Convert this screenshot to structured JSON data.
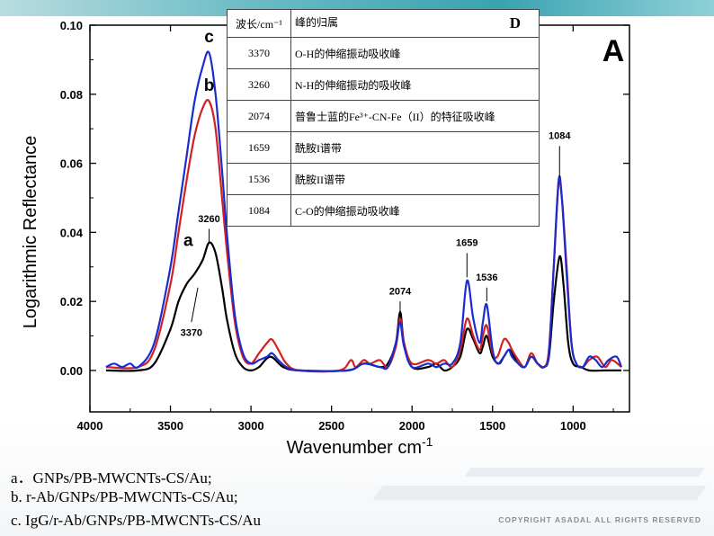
{
  "slide": {
    "legend_lines": [
      "a．GNPs/PB-MWCNTs-CS/Au;",
      "b. r-Ab/GNPs/PB-MWCNTs-CS/Au;",
      "c. IgG/r-Ab/GNPs/PB-MWCNTs-CS/Au"
    ],
    "copyright": "COPYRIGHT  ASADAL  ALL RIGHTS RESERVED"
  },
  "assignment_table": {
    "header": {
      "wavelength": "波长/cm⁻¹",
      "assignment": "峰的归属"
    },
    "panel_label": "D",
    "rows": [
      {
        "wavelength": "3370",
        "assignment": "O-H的伸缩振动吸收峰"
      },
      {
        "wavelength": "3260",
        "assignment": "N-H的伸缩振动的吸收峰"
      },
      {
        "wavelength": "2074",
        "assignment": "普鲁士蓝的Fe³⁺-CN-Fe（II）的特征吸收峰"
      },
      {
        "wavelength": "1659",
        "assignment": "酰胺I谱带"
      },
      {
        "wavelength": "1536",
        "assignment": "酰胺II谱带"
      },
      {
        "wavelength": "1084",
        "assignment": "C-O的伸缩振动吸收峰"
      }
    ]
  },
  "chart_data": {
    "type": "line",
    "panel_label": "A",
    "xlabel": "Wavenumber  cm",
    "xlabel_superscript": "-1",
    "ylabel": "Logarithmic  Reflectance",
    "xlim": [
      4000,
      650
    ],
    "ylim": [
      -0.012,
      0.1
    ],
    "x_reversed": true,
    "xticks": [
      4000,
      3500,
      3000,
      2500,
      2000,
      1500,
      1000
    ],
    "yticks": [
      0.0,
      0.02,
      0.04,
      0.06,
      0.08,
      0.1
    ],
    "ytick_labels": [
      "0.00",
      "0.02",
      "0.04",
      "0.06",
      "0.08",
      "0.10"
    ],
    "grid": false,
    "series": [
      {
        "name": "a",
        "color": "#000000",
        "points": [
          [
            3900,
            0
          ],
          [
            3700,
            0
          ],
          [
            3600,
            0.002
          ],
          [
            3500,
            0.012
          ],
          [
            3450,
            0.02
          ],
          [
            3400,
            0.025
          ],
          [
            3350,
            0.028
          ],
          [
            3300,
            0.032
          ],
          [
            3260,
            0.037
          ],
          [
            3220,
            0.034
          ],
          [
            3180,
            0.024
          ],
          [
            3150,
            0.015
          ],
          [
            3100,
            0.005
          ],
          [
            3050,
            0.001
          ],
          [
            3000,
            0
          ],
          [
            2950,
            0.001
          ],
          [
            2880,
            0.004
          ],
          [
            2800,
            0.001
          ],
          [
            2700,
            0
          ],
          [
            2400,
            0
          ],
          [
            2300,
            0.002
          ],
          [
            2200,
            0.001
          ],
          [
            2150,
            0.002
          ],
          [
            2100,
            0.008
          ],
          [
            2074,
            0.017
          ],
          [
            2050,
            0.008
          ],
          [
            2000,
            0.001
          ],
          [
            1900,
            0.001
          ],
          [
            1850,
            0.002
          ],
          [
            1800,
            0
          ],
          [
            1750,
            0.001
          ],
          [
            1700,
            0.004
          ],
          [
            1659,
            0.012
          ],
          [
            1620,
            0.009
          ],
          [
            1580,
            0.005
          ],
          [
            1560,
            0.007
          ],
          [
            1536,
            0.01
          ],
          [
            1500,
            0.004
          ],
          [
            1460,
            0.002
          ],
          [
            1430,
            0.004
          ],
          [
            1400,
            0.006
          ],
          [
            1380,
            0.005
          ],
          [
            1340,
            0.002
          ],
          [
            1300,
            0.001
          ],
          [
            1260,
            0.004
          ],
          [
            1220,
            0.002
          ],
          [
            1180,
            0.001
          ],
          [
            1150,
            0.004
          ],
          [
            1120,
            0.02
          ],
          [
            1084,
            0.033
          ],
          [
            1060,
            0.025
          ],
          [
            1030,
            0.008
          ],
          [
            1000,
            0.002
          ],
          [
            950,
            0.001
          ],
          [
            900,
            0
          ],
          [
            800,
            0
          ],
          [
            700,
            0
          ]
        ]
      },
      {
        "name": "b",
        "color": "#d42020",
        "points": [
          [
            3900,
            0.001
          ],
          [
            3700,
            0.001
          ],
          [
            3600,
            0.006
          ],
          [
            3500,
            0.025
          ],
          [
            3450,
            0.04
          ],
          [
            3400,
            0.055
          ],
          [
            3350,
            0.068
          ],
          [
            3300,
            0.076
          ],
          [
            3260,
            0.078
          ],
          [
            3220,
            0.07
          ],
          [
            3180,
            0.05
          ],
          [
            3150,
            0.035
          ],
          [
            3100,
            0.014
          ],
          [
            3050,
            0.004
          ],
          [
            3000,
            0.002
          ],
          [
            2950,
            0.005
          ],
          [
            2900,
            0.008
          ],
          [
            2870,
            0.009
          ],
          [
            2830,
            0.006
          ],
          [
            2780,
            0.002
          ],
          [
            2700,
            0
          ],
          [
            2450,
            0
          ],
          [
            2380,
            0.003
          ],
          [
            2350,
            0.001
          ],
          [
            2300,
            0.003
          ],
          [
            2260,
            0.002
          ],
          [
            2200,
            0.003
          ],
          [
            2150,
            0.001
          ],
          [
            2100,
            0.007
          ],
          [
            2074,
            0.015
          ],
          [
            2050,
            0.008
          ],
          [
            2000,
            0.002
          ],
          [
            1900,
            0.003
          ],
          [
            1850,
            0.002
          ],
          [
            1800,
            0.003
          ],
          [
            1750,
            0.001
          ],
          [
            1700,
            0.006
          ],
          [
            1659,
            0.015
          ],
          [
            1620,
            0.01
          ],
          [
            1580,
            0.006
          ],
          [
            1560,
            0.01
          ],
          [
            1536,
            0.013
          ],
          [
            1500,
            0.005
          ],
          [
            1470,
            0.004
          ],
          [
            1430,
            0.009
          ],
          [
            1400,
            0.008
          ],
          [
            1380,
            0.006
          ],
          [
            1340,
            0.003
          ],
          [
            1300,
            0.001
          ],
          [
            1260,
            0.005
          ],
          [
            1220,
            0.002
          ],
          [
            1180,
            0.001
          ],
          [
            1150,
            0.006
          ],
          [
            1120,
            0.03
          ],
          [
            1090,
            0.054
          ],
          [
            1070,
            0.05
          ],
          [
            1040,
            0.03
          ],
          [
            1010,
            0.008
          ],
          [
            980,
            0.002
          ],
          [
            940,
            0.001
          ],
          [
            900,
            0.003
          ],
          [
            850,
            0.004
          ],
          [
            800,
            0.001
          ],
          [
            760,
            0.003
          ],
          [
            700,
            0.001
          ]
        ]
      },
      {
        "name": "c",
        "color": "#1a2ccf",
        "points": [
          [
            3900,
            0.001
          ],
          [
            3850,
            0.002
          ],
          [
            3800,
            0.001
          ],
          [
            3750,
            0.002
          ],
          [
            3700,
            0.001
          ],
          [
            3600,
            0.008
          ],
          [
            3500,
            0.03
          ],
          [
            3450,
            0.046
          ],
          [
            3400,
            0.062
          ],
          [
            3350,
            0.078
          ],
          [
            3300,
            0.088
          ],
          [
            3260,
            0.092
          ],
          [
            3220,
            0.08
          ],
          [
            3180,
            0.058
          ],
          [
            3150,
            0.04
          ],
          [
            3100,
            0.016
          ],
          [
            3050,
            0.005
          ],
          [
            3000,
            0.002
          ],
          [
            2950,
            0.003
          ],
          [
            2900,
            0.004
          ],
          [
            2870,
            0.005
          ],
          [
            2830,
            0.003
          ],
          [
            2780,
            0.001
          ],
          [
            2700,
            0
          ],
          [
            2400,
            0
          ],
          [
            2300,
            0.002
          ],
          [
            2200,
            0.001
          ],
          [
            2150,
            0.001
          ],
          [
            2100,
            0.008
          ],
          [
            2074,
            0.014
          ],
          [
            2050,
            0.007
          ],
          [
            2000,
            0.001
          ],
          [
            1900,
            0.002
          ],
          [
            1850,
            0.001
          ],
          [
            1800,
            0.002
          ],
          [
            1750,
            0.002
          ],
          [
            1700,
            0.008
          ],
          [
            1659,
            0.026
          ],
          [
            1620,
            0.015
          ],
          [
            1580,
            0.008
          ],
          [
            1560,
            0.014
          ],
          [
            1536,
            0.019
          ],
          [
            1500,
            0.006
          ],
          [
            1470,
            0.002
          ],
          [
            1430,
            0.004
          ],
          [
            1400,
            0.006
          ],
          [
            1380,
            0.004
          ],
          [
            1340,
            0.002
          ],
          [
            1300,
            0.001
          ],
          [
            1260,
            0.004
          ],
          [
            1220,
            0.002
          ],
          [
            1180,
            0.001
          ],
          [
            1150,
            0.005
          ],
          [
            1120,
            0.03
          ],
          [
            1090,
            0.055
          ],
          [
            1070,
            0.05
          ],
          [
            1040,
            0.028
          ],
          [
            1010,
            0.008
          ],
          [
            980,
            0.002
          ],
          [
            940,
            0.001
          ],
          [
            900,
            0.004
          ],
          [
            860,
            0.003
          ],
          [
            820,
            0.001
          ],
          [
            780,
            0.003
          ],
          [
            730,
            0.004
          ],
          [
            700,
            0.001
          ]
        ]
      }
    ],
    "annotations": [
      {
        "text": "c",
        "x": 3260,
        "y": 0.095,
        "style": "series-letter"
      },
      {
        "text": "b",
        "x": 3260,
        "y": 0.081,
        "style": "series-letter"
      },
      {
        "text": "a",
        "x": 3390,
        "y": 0.036,
        "style": "series-letter"
      },
      {
        "text": "3260",
        "x": 3260,
        "y": 0.043,
        "style": "peak"
      },
      {
        "text": "3370",
        "x": 3370,
        "y": 0.01,
        "style": "peak"
      },
      {
        "text": "2074",
        "x": 2074,
        "y": 0.022,
        "style": "peak"
      },
      {
        "text": "1659",
        "x": 1659,
        "y": 0.036,
        "style": "peak"
      },
      {
        "text": "1536",
        "x": 1536,
        "y": 0.026,
        "style": "peak"
      },
      {
        "text": "1084",
        "x": 1084,
        "y": 0.067,
        "style": "peak"
      }
    ],
    "leader_lines": [
      {
        "x1": 3260,
        "y1": 0.041,
        "x2": 3260,
        "y2": 0.037
      },
      {
        "x1": 3370,
        "y1": 0.014,
        "x2": 3330,
        "y2": 0.024
      },
      {
        "x1": 2074,
        "y1": 0.02,
        "x2": 2074,
        "y2": 0.017
      },
      {
        "x1": 1659,
        "y1": 0.034,
        "x2": 1659,
        "y2": 0.027
      },
      {
        "x1": 1536,
        "y1": 0.024,
        "x2": 1536,
        "y2": 0.02
      },
      {
        "x1": 1084,
        "y1": 0.065,
        "x2": 1084,
        "y2": 0.056
      }
    ]
  }
}
